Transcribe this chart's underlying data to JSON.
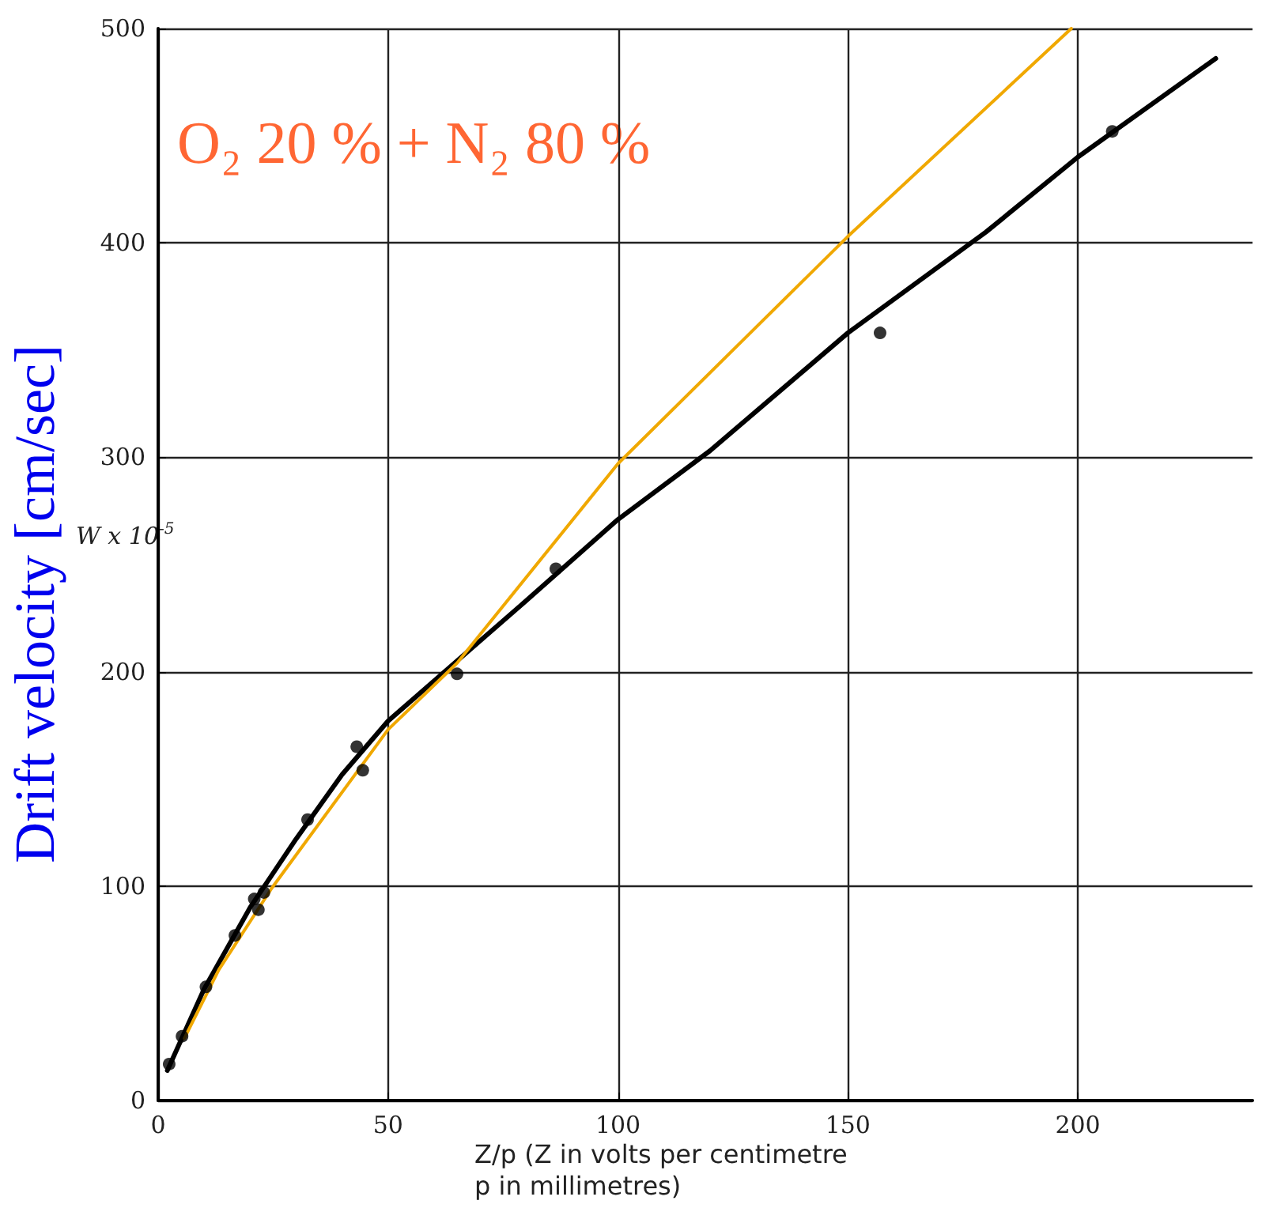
{
  "chart_data": {
    "type": "line",
    "xlabel": "Z/p (Z in volts per centimetre\np in millimetres)",
    "ylabel": "Drift velocity [cm/sec]",
    "annotations": [
      "W x 10$^{-5}$",
      "O₂ 20 % + N₂ 80 %"
    ],
    "xlim": [
      0,
      238
    ],
    "ylim": [
      0,
      500
    ],
    "xticks": [
      0,
      50,
      100,
      150,
      200
    ],
    "yticks": [
      0,
      100,
      200,
      300,
      400,
      500
    ],
    "grid": true,
    "series": [
      {
        "type": "scatter",
        "marker": "circle",
        "color": "#000000",
        "x": [
          2.4,
          5.2,
          10.4,
          16.7,
          20.9,
          21.8,
          23,
          32.5,
          43.2,
          44.5,
          65,
          86.5,
          157,
          207.5
        ],
        "values": [
          17,
          30,
          53,
          77,
          94,
          89,
          97,
          131,
          165,
          154,
          199,
          248,
          358,
          452
        ]
      },
      {
        "type": "line",
        "marker": "none",
        "color": "#000000",
        "x": [
          2,
          10,
          20,
          30,
          40,
          50,
          65,
          80,
          100,
          120,
          150,
          180,
          200,
          230
        ],
        "values": [
          14,
          52,
          90,
          122,
          152,
          177,
          205,
          233,
          271,
          303,
          358,
          405,
          440,
          486
        ]
      },
      {
        "type": "line",
        "marker": "none",
        "color": "#f0a800",
        "x": [
          5.7,
          13.2,
          24.7,
          50,
          65,
          100,
          150,
          198.6
        ],
        "values": [
          29,
          61,
          99,
          173,
          204,
          297,
          403,
          500
        ]
      }
    ]
  }
}
